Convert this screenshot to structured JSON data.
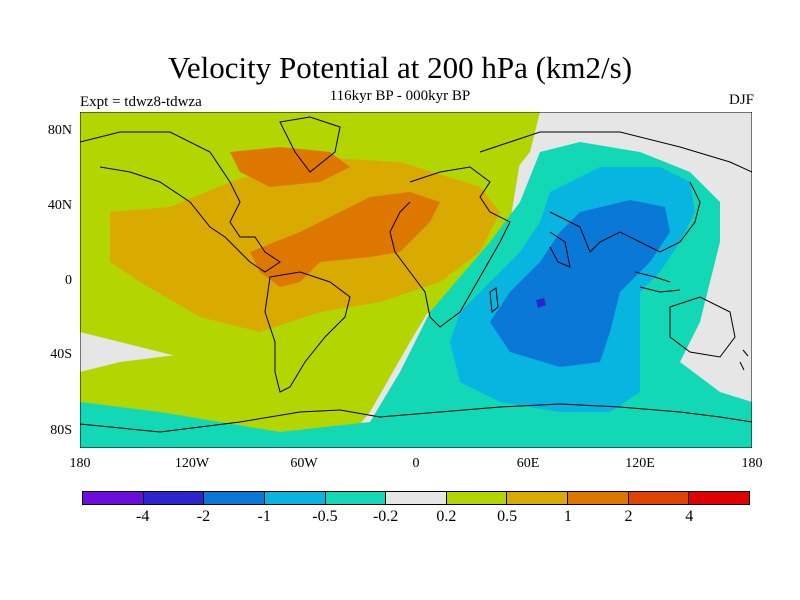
{
  "title": "Velocity Potential at 200 hPa (km2/s)",
  "subtitle": "116kyr BP - 000kyr BP",
  "experiment": "Expt = tdwz8-tdwza",
  "season": "DJF",
  "lat_ticks": [
    "80N",
    "40N",
    "0",
    "40S",
    "80S"
  ],
  "lon_ticks": [
    "180",
    "120W",
    "60W",
    "0",
    "60E",
    "120E",
    "180"
  ],
  "colorbar": {
    "colors": [
      "#6a0ddd",
      "#2c25cf",
      "#0a78d6",
      "#08b4e0",
      "#12d8b6",
      "#e6e6e6",
      "#b3d600",
      "#d9aa00",
      "#de7700",
      "#df4400",
      "#e00000"
    ],
    "labels": [
      "-4",
      "-2",
      "-1",
      "-0.5",
      "-0.2",
      "0.2",
      "0.5",
      "1",
      "2",
      "4"
    ]
  },
  "colors": {
    "neutral": "#e6e6e6",
    "yellowgreen": "#b3d600",
    "gold": "#d9aa00",
    "orange": "#de7700",
    "teal": "#12d8b6",
    "cyan": "#08b4e0",
    "blue": "#0a78d6",
    "deepblue": "#2c25cf"
  }
}
